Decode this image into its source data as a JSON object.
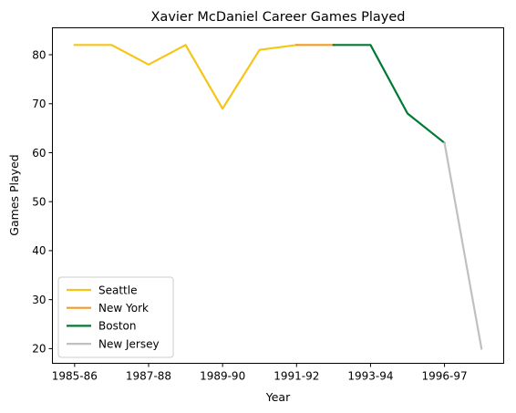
{
  "chart_data": {
    "type": "line",
    "title": "Xavier McDaniel Career Games Played",
    "xlabel": "Year",
    "ylabel": "Games Played",
    "x_tick_labels": [
      "1985-86",
      "1987-88",
      "1989-90",
      "1991-92",
      "1993-94",
      "1996-97"
    ],
    "x_tick_indices": [
      0,
      2,
      4,
      6,
      8,
      10
    ],
    "yticks": [
      20,
      30,
      40,
      50,
      60,
      70,
      80
    ],
    "ylim": [
      17,
      85.5
    ],
    "xlim": [
      -0.6,
      11.6
    ],
    "grid": false,
    "legend_position": "lower-left",
    "series": [
      {
        "name": "Seattle",
        "color": "#f5c518",
        "x": [
          0,
          1,
          2,
          3,
          4,
          5,
          6
        ],
        "y": [
          82,
          82,
          78,
          82,
          69,
          81,
          82
        ]
      },
      {
        "name": "New York",
        "color": "#f59b20",
        "x": [
          6,
          7
        ],
        "y": [
          82,
          82
        ]
      },
      {
        "name": "Boston",
        "color": "#007a33",
        "x": [
          7,
          8,
          9,
          10
        ],
        "y": [
          82,
          82,
          68,
          62
        ]
      },
      {
        "name": "New Jersey",
        "color": "#c0c0c0",
        "x": [
          10,
          11
        ],
        "y": [
          62,
          20
        ]
      }
    ]
  }
}
